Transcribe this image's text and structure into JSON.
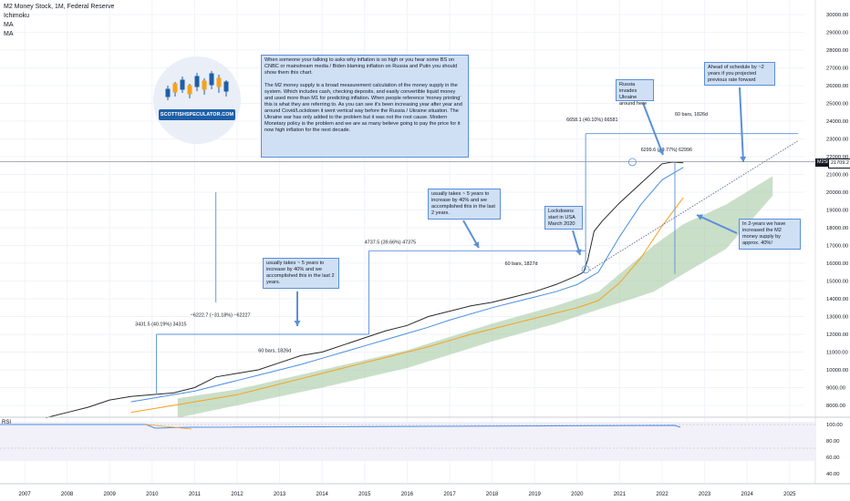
{
  "legend": {
    "title": "M2 Money Stock, 1M, Federal Reserve",
    "ind1": "Ichimoku",
    "ind2": "MA",
    "ind3": "MA"
  },
  "notes": {
    "main": "When someone your talking to asks why inflation is so high or you hear some BS on CNBC or mainstream media / Biden blaming inflation on Russia and Putin you should show them this chart.\n\nThe M2 money supply is a broad measurement calculation of the money supply in the system. Which includes cash, checking deposits, and easily convertible liquid money and used more than M1 for predicting inflation. When people reference 'money printing' this is what they are referring to. As you can see it's been increasing year after year and around Covid/Lockdown it went vertical way before the Russia / Ukraine situation. The Ukraine war has only added to the problem but it was not the root cause. Modern Monetary policy is the problem and we are as many believe going to pay the price for it now high inflation for the next decade.",
    "usually1": "usually takes ~ 5 years to increase by 40% and we accomplished this in the last 2 years.",
    "usually2": "usually takes ~ 5 years to increase by 40% and we accomplished this in the last 2 years.",
    "lockdowns": "Lockdowns start in USA March 2020",
    "russia": "Russia invades Ukraine around here",
    "ahead": "Ahead of schedule by ~2 years if you projected previous rate forward",
    "in2years": "In 2-years we have increased the M2 money supply by approx. 40%!"
  },
  "logo": {
    "text": "SCOTTISHSPECULATOR.COM"
  },
  "measurements": {
    "m1": "3431.5 (40.19%) 34315",
    "m1bars": "60 bars, 1826d",
    "m2": "4737.5 (39.66%) 47375",
    "m2bars": "60 bars, 1827d",
    "m3": "6658.1 (40.10%) 66581",
    "m3bars": "60 bars, 1826d",
    "m4": "6299.6 (40.77%) 62996",
    "neg": "−6222.7 (−31.18%) −62227",
    "bars4": "60 bars, 1826d"
  },
  "price_tag": {
    "label": "M2SL",
    "value": "21709.2"
  },
  "rsi_label": "RSI",
  "colors": {
    "m2_line": "#2a2a2a",
    "ma_blue": "#4a8fe2",
    "ma_orange": "#f7a21b",
    "cloud": "#9fc59a",
    "annotation_blue": "#5b8fd8"
  },
  "chart_data": {
    "type": "line",
    "x_axis_labels": [
      "2007",
      "2008",
      "2009",
      "2010",
      "2011",
      "2012",
      "2013",
      "2014",
      "2015",
      "2016",
      "2017",
      "2018",
      "2019",
      "2020",
      "2021",
      "2022",
      "2023",
      "2024",
      "2025"
    ],
    "y_axis_labels": [
      "30000.00",
      "29000.00",
      "28000.00",
      "27000.00",
      "26000.00",
      "25000.00",
      "24000.00",
      "23000.00",
      "22000.00",
      "21000.00",
      "20000.00",
      "19000.00",
      "18000.00",
      "17000.00",
      "16000.00",
      "15000.00",
      "14000.00",
      "13000.00",
      "12000.00",
      "11000.00",
      "10000.00",
      "9000.00",
      "8000.00"
    ],
    "rsi_axis_labels": [
      "100.00",
      "80.00",
      "60.00",
      "40.00"
    ],
    "ylim": [
      7400,
      30400
    ],
    "series": [
      {
        "x": [
          2007.5,
          2008,
          2008.5,
          2009,
          2009.5,
          2010,
          2010.5,
          2011,
          2011.5,
          2012,
          2012.5,
          2013,
          2013.5,
          2014,
          2014.5,
          2015,
          2015.5,
          2016,
          2016.5,
          2017,
          2017.5,
          2018,
          2018.5,
          2019,
          2019.5,
          2020,
          2020.15,
          2020.25,
          2020.4,
          2020.6,
          2021,
          2021.5,
          2022,
          2022.25,
          2022.5
        ],
        "values": [
          7300,
          7600,
          7900,
          8300,
          8500,
          8600,
          8700,
          9000,
          9600,
          9800,
          10000,
          10400,
          10800,
          11000,
          11400,
          11800,
          12200,
          12500,
          13000,
          13300,
          13600,
          13800,
          14100,
          14400,
          14800,
          15300,
          15500,
          16200,
          17800,
          18400,
          19400,
          20500,
          21600,
          21700,
          21650
        ]
      },
      {
        "x": [
          2009.5,
          2010,
          2010.5,
          2011,
          2011.5,
          2012,
          2012.5,
          2013,
          2013.5,
          2014,
          2014.5,
          2015,
          2015.5,
          2016,
          2016.5,
          2017,
          2017.5,
          2018,
          2018.5,
          2019,
          2019.5,
          2020,
          2020.5,
          2021,
          2021.5,
          2022,
          2022.5
        ],
        "values": [
          8200,
          8400,
          8600,
          8800,
          9100,
          9400,
          9700,
          10000,
          10300,
          10650,
          11000,
          11350,
          11700,
          12050,
          12400,
          12800,
          13150,
          13500,
          13800,
          14100,
          14400,
          14800,
          15500,
          17500,
          19300,
          20700,
          21400
        ]
      },
      {
        "x": [
          2009.5,
          2010,
          2010.5,
          2011,
          2011.5,
          2012,
          2012.5,
          2013,
          2013.5,
          2014,
          2014.5,
          2015,
          2015.5,
          2016,
          2016.5,
          2017,
          2017.5,
          2018,
          2018.5,
          2019,
          2019.5,
          2020,
          2020.5,
          2021,
          2021.5,
          2022,
          2022.5
        ],
        "values": [
          7600,
          7800,
          8000,
          8200,
          8400,
          8600,
          8900,
          9200,
          9500,
          9800,
          10100,
          10400,
          10700,
          11000,
          11300,
          11650,
          12000,
          12300,
          12600,
          12900,
          13200,
          13500,
          13900,
          14900,
          16300,
          18100,
          19700
        ]
      }
    ],
    "grid": true,
    "legend": "top-left"
  }
}
